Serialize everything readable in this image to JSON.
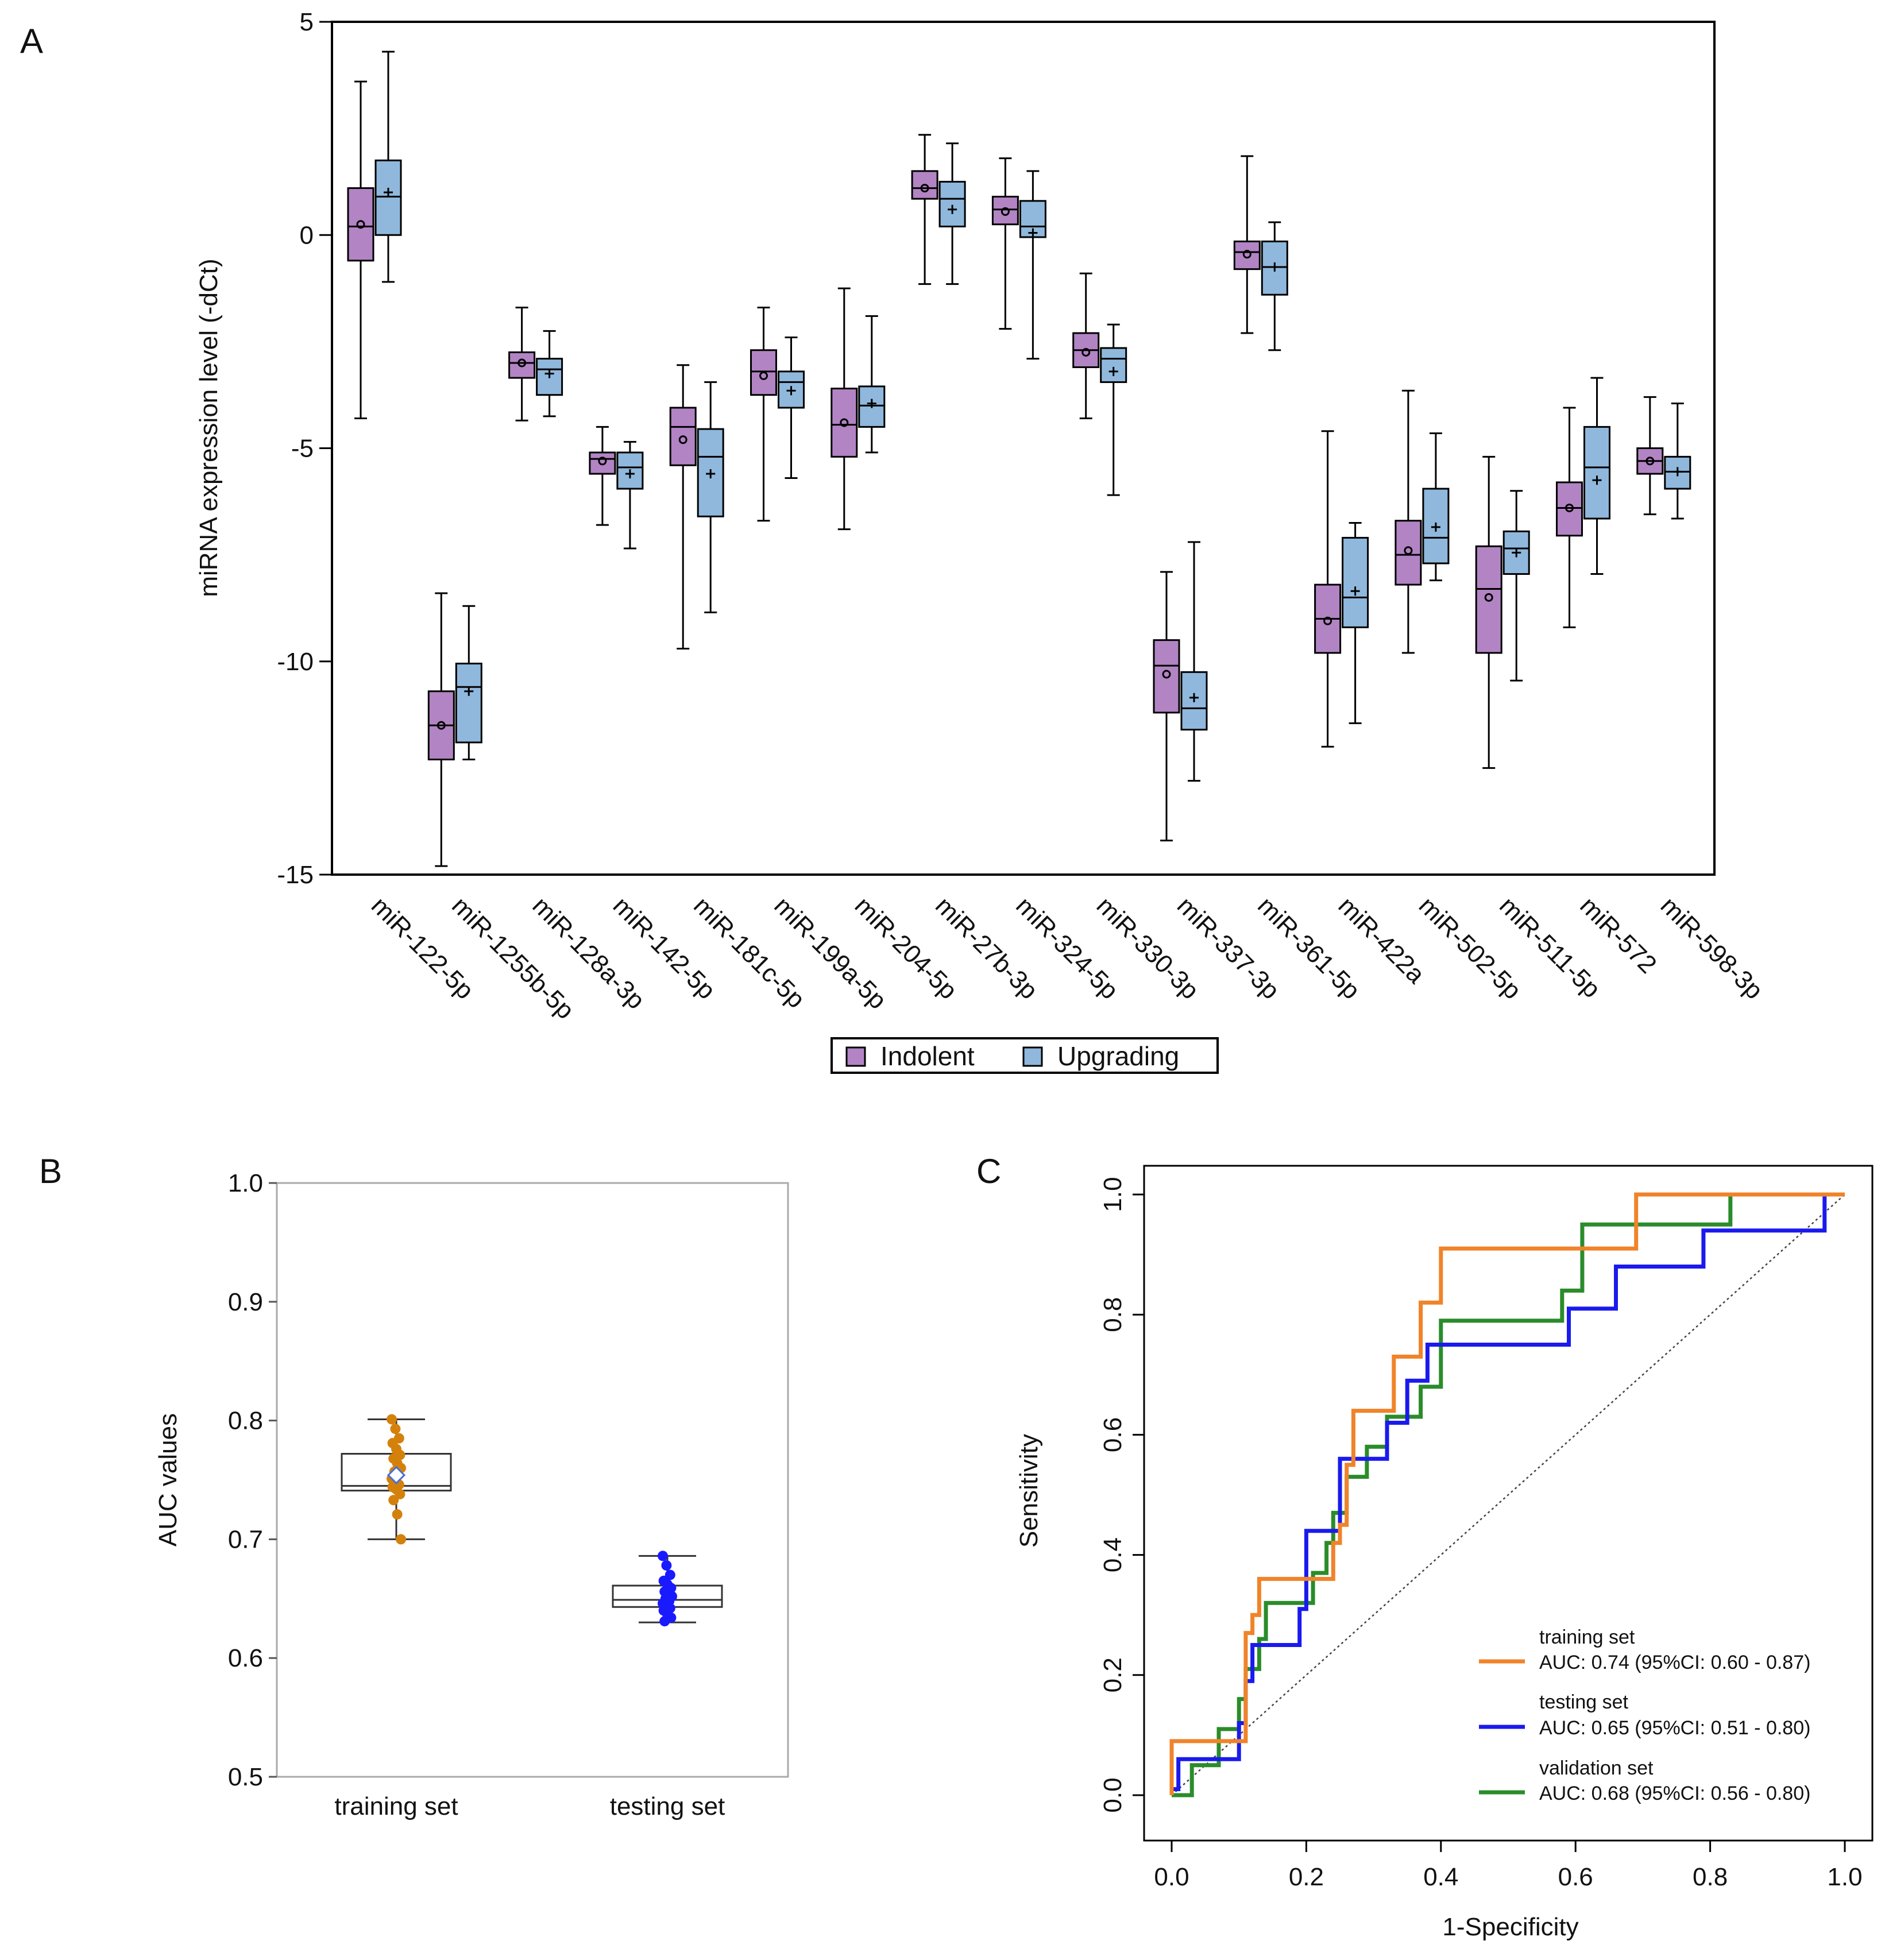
{
  "panels": {
    "a": "A",
    "b": "B",
    "c": "C"
  },
  "colors": {
    "indolent": "#b284c4",
    "upgrading": "#8fb8dc",
    "training_points": "#d4810c",
    "testing_points": "#1a1aff",
    "mean_diamond": "#4a6fd4",
    "roc_training": "#f0832a",
    "roc_testing": "#1a1aee",
    "roc_validation": "#2a8c2a"
  },
  "chart_data": [
    {
      "type": "boxplot",
      "panel": "A",
      "ylabel": "miRNA expression level (-dCt)",
      "ylim": [
        -15,
        5
      ],
      "yticks": [
        5,
        0,
        -5,
        -10,
        -15
      ],
      "ytick_labels": [
        "5",
        "0",
        "-5",
        "-10",
        "-15"
      ],
      "legend": [
        {
          "name": "Indolent",
          "color": "#b284c4"
        },
        {
          "name": "Upgrading",
          "color": "#8fb8dc"
        }
      ],
      "categories": [
        "miR-122-5p",
        "miR-1255b-5p",
        "miR-128a-3p",
        "miR-142-5p",
        "miR-181c-5p",
        "miR-199a-5p",
        "miR-204-5p",
        "miR-27b-3p",
        "miR-324-5p",
        "miR-330-3p",
        "miR-337-3p",
        "miR-361-5p",
        "miR-422a",
        "miR-502-5p",
        "miR-511-5p",
        "miR-572",
        "miR-598-3p"
      ],
      "series": [
        {
          "name": "Indolent",
          "boxes": [
            {
              "min": -4.3,
              "q1": -0.6,
              "median": 0.2,
              "q3": 1.1,
              "max": 3.6,
              "mean": 0.25
            },
            {
              "min": -14.8,
              "q1": -12.3,
              "median": -11.5,
              "q3": -10.7,
              "max": -8.4,
              "mean": -11.5
            },
            {
              "min": -4.35,
              "q1": -3.35,
              "median": -3.0,
              "q3": -2.75,
              "max": -1.7,
              "mean": -3.0
            },
            {
              "min": -6.8,
              "q1": -5.6,
              "median": -5.25,
              "q3": -5.1,
              "max": -4.5,
              "mean": -5.3
            },
            {
              "min": -9.7,
              "q1": -5.4,
              "median": -4.5,
              "q3": -4.05,
              "max": -3.05,
              "mean": -4.8
            },
            {
              "min": -6.7,
              "q1": -3.75,
              "median": -3.2,
              "q3": -2.7,
              "max": -1.7,
              "mean": -3.3
            },
            {
              "min": -6.9,
              "q1": -5.2,
              "median": -4.45,
              "q3": -3.6,
              "max": -1.25,
              "mean": -4.4
            },
            {
              "min": -1.15,
              "q1": 0.85,
              "median": 1.1,
              "q3": 1.5,
              "max": 2.35,
              "mean": 1.1
            },
            {
              "min": -2.2,
              "q1": 0.25,
              "median": 0.6,
              "q3": 0.9,
              "max": 1.8,
              "mean": 0.55
            },
            {
              "min": -4.3,
              "q1": -3.1,
              "median": -2.7,
              "q3": -2.3,
              "max": -0.9,
              "mean": -2.75
            },
            {
              "min": -14.2,
              "q1": -11.2,
              "median": -10.1,
              "q3": -9.5,
              "max": -7.9,
              "mean": -10.3
            },
            {
              "min": -2.3,
              "q1": -0.8,
              "median": -0.4,
              "q3": -0.15,
              "max": 1.85,
              "mean": -0.45
            },
            {
              "min": -12.0,
              "q1": -9.8,
              "median": -9.0,
              "q3": -8.2,
              "max": -4.6,
              "mean": -9.05
            },
            {
              "min": -9.8,
              "q1": -8.2,
              "median": -7.5,
              "q3": -6.7,
              "max": -3.65,
              "mean": -7.4
            },
            {
              "min": -12.5,
              "q1": -9.8,
              "median": -8.3,
              "q3": -7.3,
              "max": -5.2,
              "mean": -8.5
            },
            {
              "min": -9.2,
              "q1": -7.05,
              "median": -6.4,
              "q3": -5.8,
              "max": -4.05,
              "mean": -6.4
            },
            {
              "min": -6.55,
              "q1": -5.6,
              "median": -5.3,
              "q3": -5.0,
              "max": -3.8,
              "mean": -5.3
            }
          ]
        },
        {
          "name": "Upgrading",
          "boxes": [
            {
              "min": -1.1,
              "q1": 0.0,
              "median": 0.9,
              "q3": 1.75,
              "max": 4.3,
              "mean": 1.0
            },
            {
              "min": -12.3,
              "q1": -11.9,
              "median": -10.6,
              "q3": -10.05,
              "max": -8.7,
              "mean": -10.7
            },
            {
              "min": -4.25,
              "q1": -3.75,
              "median": -3.15,
              "q3": -2.9,
              "max": -2.25,
              "mean": -3.25
            },
            {
              "min": -7.35,
              "q1": -5.95,
              "median": -5.45,
              "q3": -5.1,
              "max": -4.85,
              "mean": -5.6
            },
            {
              "min": -8.85,
              "q1": -6.6,
              "median": -5.2,
              "q3": -4.55,
              "max": -3.45,
              "mean": -5.6
            },
            {
              "min": -5.7,
              "q1": -4.05,
              "median": -3.45,
              "q3": -3.2,
              "max": -2.4,
              "mean": -3.65
            },
            {
              "min": -5.1,
              "q1": -4.5,
              "median": -4.0,
              "q3": -3.55,
              "max": -1.9,
              "mean": -3.95
            },
            {
              "min": -1.15,
              "q1": 0.2,
              "median": 0.85,
              "q3": 1.25,
              "max": 2.15,
              "mean": 0.6
            },
            {
              "min": -2.9,
              "q1": -0.05,
              "median": 0.2,
              "q3": 0.8,
              "max": 1.5,
              "mean": 0.05
            },
            {
              "min": -6.1,
              "q1": -3.45,
              "median": -2.9,
              "q3": -2.65,
              "max": -2.1,
              "mean": -3.2
            },
            {
              "min": -12.8,
              "q1": -11.6,
              "median": -11.1,
              "q3": -10.25,
              "max": -7.2,
              "mean": -10.85
            },
            {
              "min": -2.7,
              "q1": -1.4,
              "median": -0.75,
              "q3": -0.15,
              "max": 0.3,
              "mean": -0.75
            },
            {
              "min": -11.45,
              "q1": -9.2,
              "median": -8.5,
              "q3": -7.1,
              "max": -6.75,
              "mean": -8.35
            },
            {
              "min": -8.1,
              "q1": -7.7,
              "median": -7.1,
              "q3": -5.95,
              "max": -4.65,
              "mean": -6.85
            },
            {
              "min": -10.45,
              "q1": -7.95,
              "median": -7.35,
              "q3": -6.95,
              "max": -6.0,
              "mean": -7.45
            },
            {
              "min": -7.95,
              "q1": -6.65,
              "median": -5.45,
              "q3": -4.5,
              "max": -3.35,
              "mean": -5.75
            },
            {
              "min": -6.65,
              "q1": -5.95,
              "median": -5.55,
              "q3": -5.2,
              "max": -3.95,
              "mean": -5.55
            }
          ]
        }
      ]
    },
    {
      "type": "boxplot",
      "panel": "B",
      "ylabel": "AUC values",
      "ylim": [
        0.5,
        1.0
      ],
      "yticks": [
        1.0,
        0.9,
        0.8,
        0.7,
        0.6,
        0.5
      ],
      "ytick_labels": [
        "1.0",
        "0.9",
        "0.8",
        "0.7",
        "0.6",
        "0.5"
      ],
      "categories": [
        "training set",
        "testing set"
      ],
      "boxes": [
        {
          "min": 0.7,
          "q1": 0.741,
          "median": 0.745,
          "q3": 0.772,
          "max": 0.801,
          "mean": 0.754
        },
        {
          "min": 0.63,
          "q1": 0.643,
          "median": 0.649,
          "q3": 0.661,
          "max": 0.686,
          "mean": 0.652
        }
      ],
      "points": [
        [
          0.801,
          0.793,
          0.785,
          0.781,
          0.776,
          0.771,
          0.768,
          0.764,
          0.76,
          0.757,
          0.754,
          0.751,
          0.748,
          0.746,
          0.744,
          0.742,
          0.738,
          0.733,
          0.721,
          0.7
        ],
        [
          0.686,
          0.678,
          0.67,
          0.665,
          0.662,
          0.659,
          0.656,
          0.654,
          0.652,
          0.65,
          0.648,
          0.646,
          0.644,
          0.642,
          0.64,
          0.637,
          0.634,
          0.631
        ]
      ]
    },
    {
      "type": "line",
      "panel": "C",
      "xlabel": "1-Specificity",
      "ylabel": "Sensitivity",
      "xlim": [
        0,
        1
      ],
      "ylim": [
        0,
        1
      ],
      "xticks": [
        0.0,
        0.2,
        0.4,
        0.6,
        0.8,
        1.0
      ],
      "xtick_labels": [
        "0.0",
        "0.2",
        "0.4",
        "0.6",
        "0.8",
        "1.0"
      ],
      "yticks": [
        0.0,
        0.2,
        0.4,
        0.6,
        0.8,
        1.0
      ],
      "ytick_labels": [
        "0.0",
        "0.2",
        "0.4",
        "0.6",
        "0.8",
        "1.0"
      ],
      "series": [
        {
          "name": "training set",
          "auc_label": "AUC: 0.74 (95%CI: 0.60 - 0.87)",
          "color": "#f0832a",
          "x": [
            0.0,
            0.0,
            0.11,
            0.11,
            0.12,
            0.12,
            0.13,
            0.13,
            0.24,
            0.24,
            0.25,
            0.25,
            0.26,
            0.26,
            0.27,
            0.27,
            0.33,
            0.33,
            0.37,
            0.37,
            0.4,
            0.4,
            0.69,
            0.69,
            1.0
          ],
          "y": [
            0.0,
            0.09,
            0.09,
            0.27,
            0.27,
            0.3,
            0.3,
            0.36,
            0.36,
            0.42,
            0.42,
            0.45,
            0.45,
            0.55,
            0.55,
            0.64,
            0.64,
            0.73,
            0.73,
            0.82,
            0.82,
            0.91,
            0.91,
            1.0,
            1.0
          ]
        },
        {
          "name": "testing set",
          "auc_label": "AUC: 0.65 (95%CI: 0.51 - 0.80)",
          "color": "#1a1aee",
          "x": [
            0.0,
            0.0,
            0.01,
            0.01,
            0.1,
            0.1,
            0.11,
            0.11,
            0.12,
            0.12,
            0.14,
            0.14,
            0.19,
            0.19,
            0.2,
            0.2,
            0.25,
            0.25,
            0.32,
            0.32,
            0.35,
            0.35,
            0.38,
            0.38,
            0.59,
            0.59,
            0.66,
            0.66,
            0.79,
            0.79,
            0.97,
            0.97,
            1.0
          ],
          "y": [
            0.0,
            0.01,
            0.01,
            0.06,
            0.06,
            0.12,
            0.12,
            0.19,
            0.19,
            0.25,
            0.25,
            0.25,
            0.25,
            0.31,
            0.31,
            0.44,
            0.44,
            0.56,
            0.56,
            0.62,
            0.62,
            0.69,
            0.69,
            0.75,
            0.75,
            0.81,
            0.81,
            0.88,
            0.88,
            0.94,
            0.94,
            1.0,
            1.0
          ]
        },
        {
          "name": "validation set",
          "auc_label": "AUC: 0.68 (95%CI: 0.56 - 0.80)",
          "color": "#2a8c2a",
          "x": [
            0.0,
            0.03,
            0.03,
            0.07,
            0.07,
            0.1,
            0.1,
            0.11,
            0.11,
            0.13,
            0.13,
            0.14,
            0.14,
            0.21,
            0.21,
            0.23,
            0.23,
            0.24,
            0.24,
            0.26,
            0.26,
            0.28,
            0.28,
            0.29,
            0.29,
            0.32,
            0.32,
            0.33,
            0.33,
            0.37,
            0.37,
            0.4,
            0.4,
            0.58,
            0.58,
            0.61,
            0.61,
            0.83,
            0.83,
            1.0
          ],
          "y": [
            0.0,
            0.0,
            0.05,
            0.05,
            0.11,
            0.11,
            0.16,
            0.16,
            0.21,
            0.21,
            0.26,
            0.26,
            0.32,
            0.32,
            0.37,
            0.37,
            0.42,
            0.42,
            0.47,
            0.47,
            0.53,
            0.53,
            0.53,
            0.53,
            0.58,
            0.58,
            0.63,
            0.63,
            0.63,
            0.63,
            0.68,
            0.68,
            0.79,
            0.79,
            0.84,
            0.84,
            0.95,
            0.95,
            1.0,
            1.0
          ]
        }
      ]
    }
  ]
}
